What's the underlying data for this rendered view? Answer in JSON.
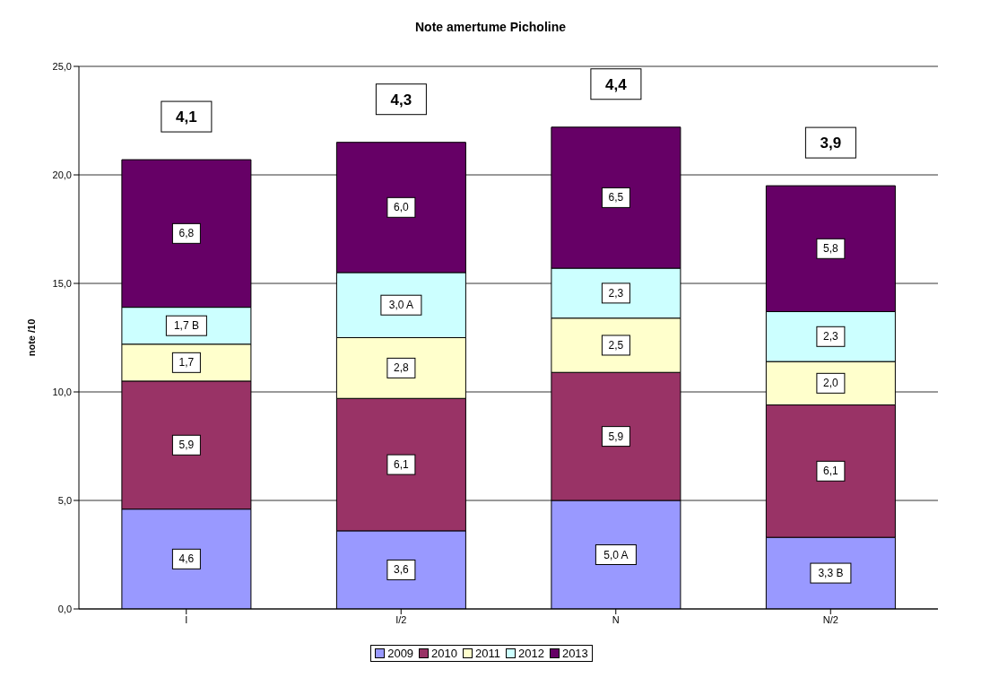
{
  "chart_data": {
    "type": "bar",
    "title": "Note amertume Picholine",
    "ylabel": "note /10",
    "stacked": true,
    "categories": [
      "I",
      "I/2",
      "N",
      "N/2"
    ],
    "series": [
      {
        "name": "2009",
        "color": "#9999ff",
        "values": [
          4.6,
          3.6,
          5.0,
          3.3
        ],
        "value_labels": [
          "4,6",
          "3,6",
          "5,0 A",
          "3,3 B"
        ]
      },
      {
        "name": "2010",
        "color": "#993366",
        "values": [
          5.9,
          6.1,
          5.9,
          6.1
        ],
        "value_labels": [
          "5,9",
          "6,1",
          "5,9",
          "6,1"
        ]
      },
      {
        "name": "2011",
        "color": "#ffffcc",
        "values": [
          1.7,
          2.8,
          2.5,
          2.0
        ],
        "value_labels": [
          "1,7",
          "2,8",
          "2,5",
          "2,0"
        ]
      },
      {
        "name": "2012",
        "color": "#ccffff",
        "values": [
          1.7,
          3.0,
          2.3,
          2.3
        ],
        "value_labels": [
          "1,7 B",
          "3,0 A",
          "2,3",
          "2,3"
        ]
      },
      {
        "name": "2013",
        "color": "#660066",
        "values": [
          6.8,
          6.0,
          6.5,
          5.8
        ],
        "value_labels": [
          "6,8",
          "6,0",
          "6,5",
          "5,8"
        ]
      }
    ],
    "annotations": [
      {
        "text": "4,1",
        "x": "I",
        "y": 20.7
      },
      {
        "text": "4,3",
        "x": "I/2",
        "y": 21.5
      },
      {
        "text": "4,4",
        "x": "N",
        "y": 22.2
      },
      {
        "text": "3,9",
        "x": "N/2",
        "y": 19.5
      }
    ],
    "ylim": [
      0,
      25
    ],
    "yticks": [
      {
        "value": 0,
        "label": "0,0"
      },
      {
        "value": 5,
        "label": "5,0"
      },
      {
        "value": 10,
        "label": "10,0"
      },
      {
        "value": 15,
        "label": "15,0"
      },
      {
        "value": 20,
        "label": "20,0"
      },
      {
        "value": 25,
        "label": "25,0"
      }
    ],
    "grid": "y",
    "legend": "bottom"
  }
}
